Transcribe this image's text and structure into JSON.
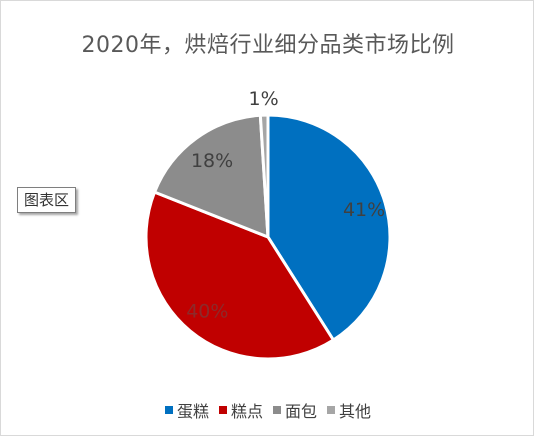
{
  "tooltip": "图表区",
  "chart_data": {
    "type": "pie",
    "title": "2020年，烘焙行业细分品类市场比例",
    "categories": [
      "蛋糕",
      "糕点",
      "面包",
      "其他"
    ],
    "values": [
      41,
      40,
      18,
      1
    ],
    "labels": [
      "41%",
      "40%",
      "18%",
      "1%"
    ],
    "colors": [
      "#0070c0",
      "#c00000",
      "#8c8c8c",
      "#a6a6a6"
    ],
    "label_colors": [
      "#404040",
      "#8c2a2a",
      "#404040",
      "#404040"
    ],
    "legend_position": "bottom"
  }
}
